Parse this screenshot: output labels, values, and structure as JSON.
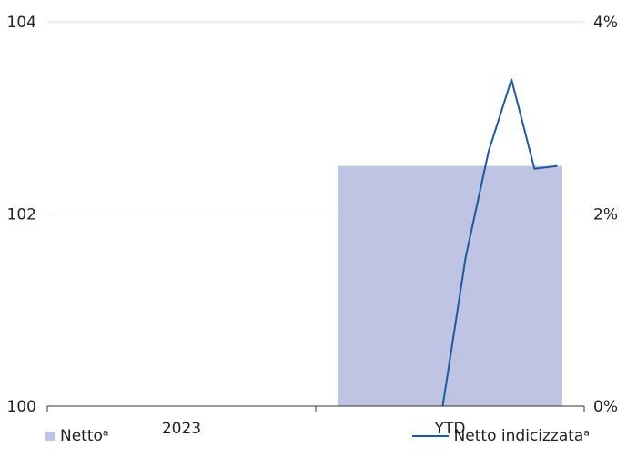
{
  "chart_data": {
    "type": "bar+line",
    "categories": [
      "2023",
      "YTD"
    ],
    "left_axis": {
      "ylim": [
        100,
        104
      ],
      "ticks": [
        "100",
        "102",
        "104"
      ],
      "tick_values": [
        100,
        102,
        104
      ]
    },
    "right_axis": {
      "ylim": [
        0,
        4
      ],
      "ticks": [
        "0%",
        "2%",
        "4%"
      ],
      "tick_values": [
        0,
        2,
        4
      ]
    },
    "series": [
      {
        "name": "Nettoᵃ",
        "kind": "bar",
        "axis": "right",
        "color": "#bec4e1",
        "values": [
          null,
          2.5
        ]
      },
      {
        "name": "Netto indicizzataᵃ",
        "kind": "line",
        "axis": "left",
        "color": "#1a5aa3",
        "points": [
          {
            "x": "YTD",
            "sub": 0.0,
            "y": 100.0
          },
          {
            "x": "YTD",
            "sub": 0.2,
            "y": 101.55
          },
          {
            "x": "YTD",
            "sub": 0.4,
            "y": 102.65
          },
          {
            "x": "YTD",
            "sub": 0.6,
            "y": 103.4
          },
          {
            "x": "YTD",
            "sub": 0.8,
            "y": 102.47
          },
          {
            "x": "YTD",
            "sub": 1.0,
            "y": 102.5
          }
        ]
      }
    ],
    "grid": true,
    "legend": "bottom"
  }
}
